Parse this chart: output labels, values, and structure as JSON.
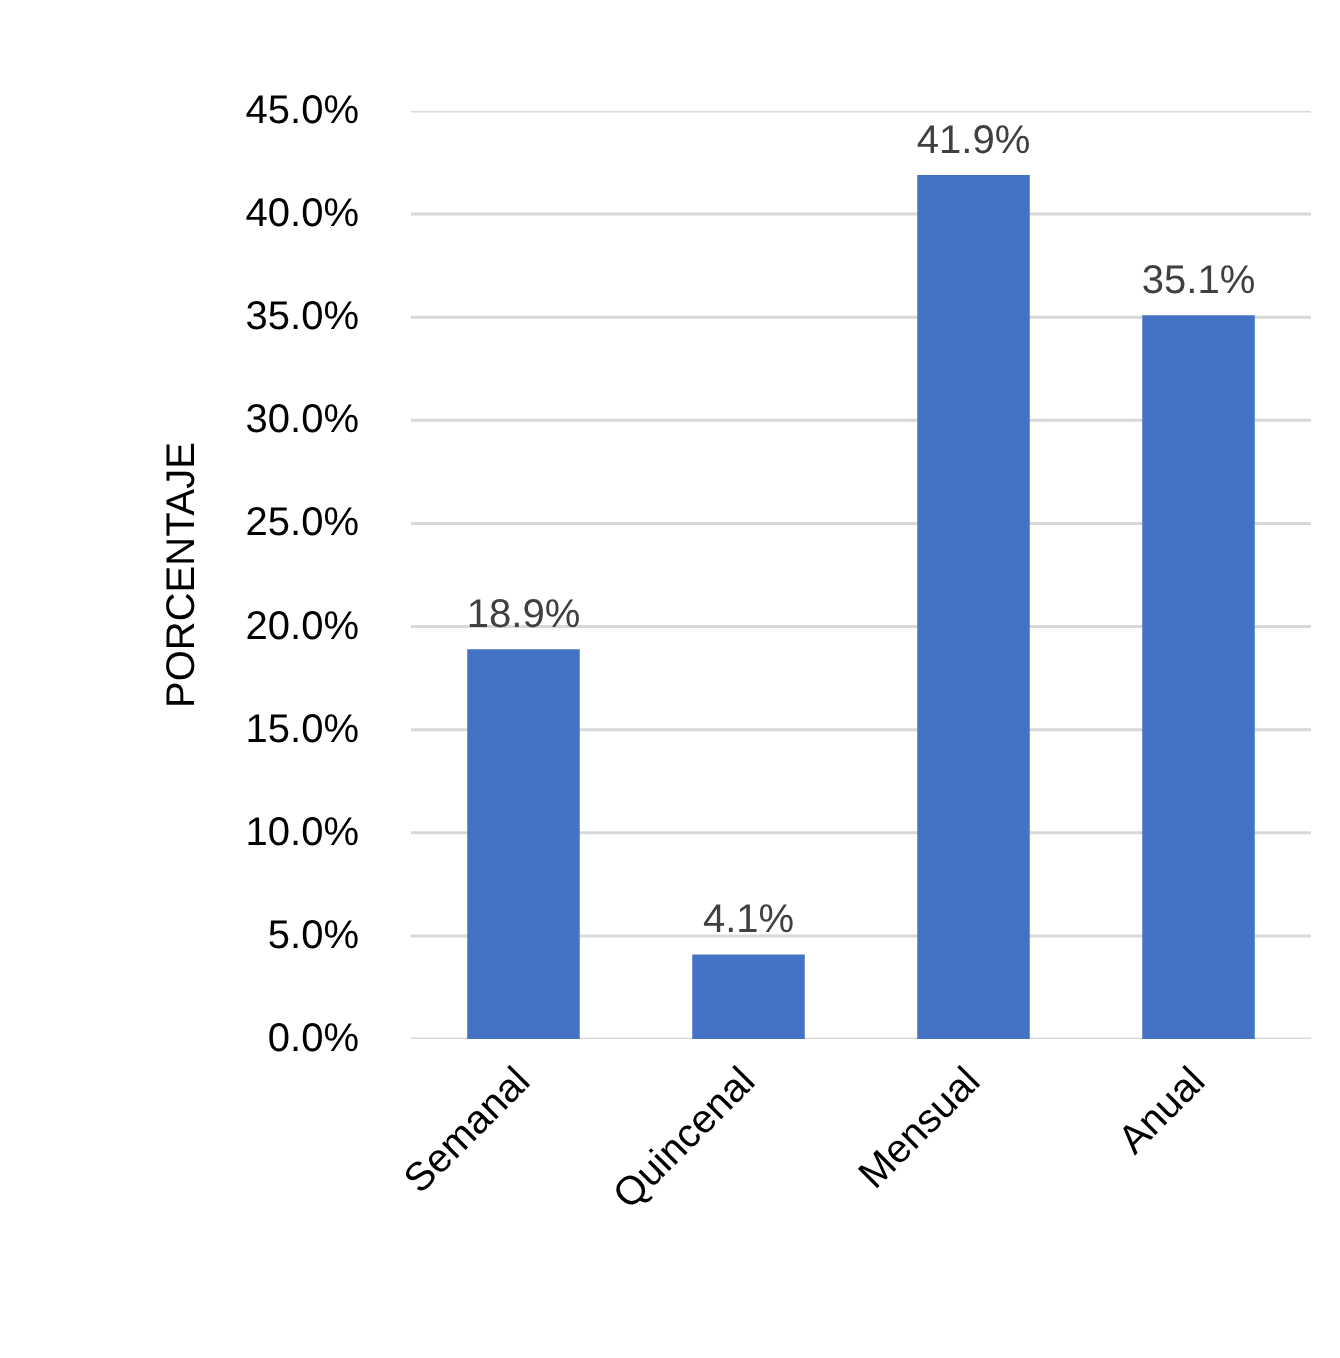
{
  "chart_data": {
    "type": "bar",
    "ylabel": "PORCENTAJE",
    "categories": [
      "Semanal",
      "Quincenal",
      "Mensual",
      "Anual"
    ],
    "values": [
      18.9,
      4.1,
      41.9,
      35.1
    ],
    "color": "#4472c4",
    "value_labels": [
      "18.9%",
      "4.1%",
      "41.9%",
      "35.1%"
    ],
    "ylim": [
      0,
      45
    ],
    "yticks": [
      {
        "value": 0,
        "label": "0.0%"
      },
      {
        "value": 5,
        "label": "5.0%"
      },
      {
        "value": 10,
        "label": "10.0%"
      },
      {
        "value": 15,
        "label": "15.0%"
      },
      {
        "value": 20,
        "label": "20.0%"
      },
      {
        "value": 25,
        "label": "25.0%"
      },
      {
        "value": 30,
        "label": "30.0%"
      },
      {
        "value": 35,
        "label": "35.0%"
      },
      {
        "value": 40,
        "label": "40.0%"
      },
      {
        "value": 45,
        "label": "45.0%"
      }
    ],
    "grid": "y"
  }
}
